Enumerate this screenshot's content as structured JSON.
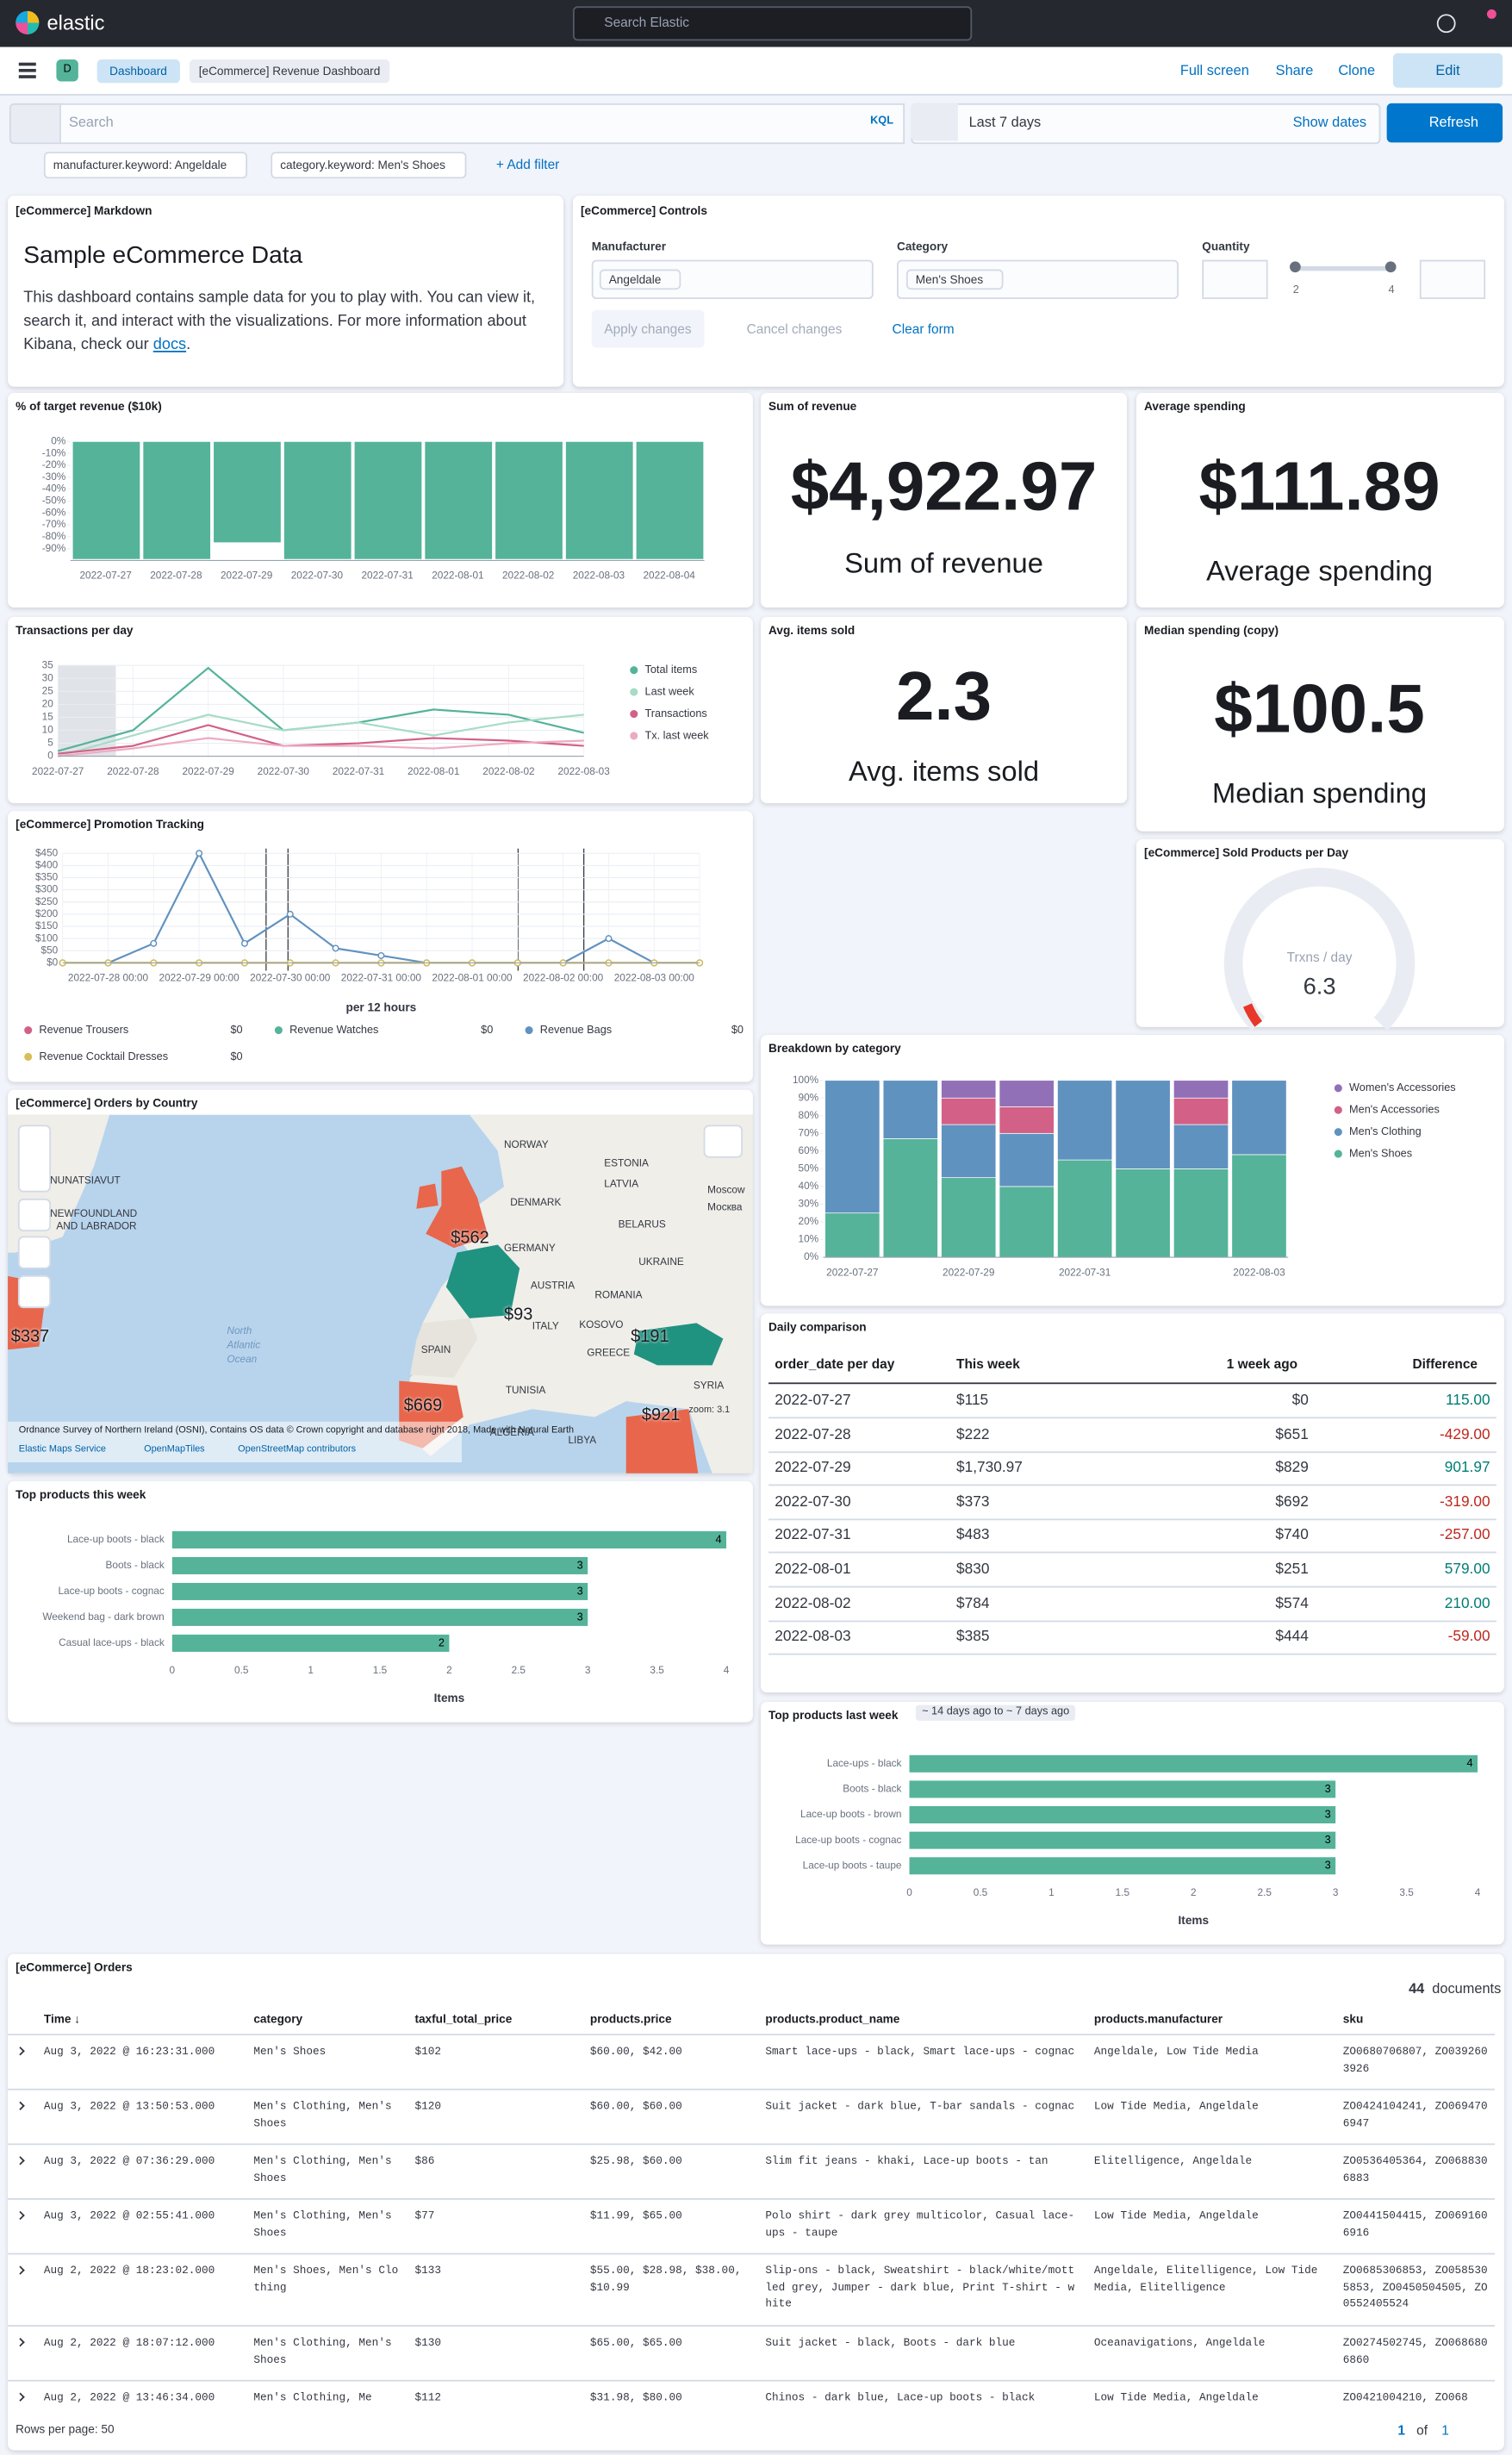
{
  "header": {
    "brand": "elastic",
    "search_placeholder": "Search Elastic"
  },
  "nav": {
    "badge": "D",
    "breadcrumbs": [
      "Dashboard",
      "[eCommerce] Revenue Dashboard"
    ],
    "actions": [
      "Full screen",
      "Share",
      "Clone"
    ],
    "edit": "Edit"
  },
  "query": {
    "placeholder": "Search",
    "language": "KQL",
    "date": "Last 7 days",
    "show_dates": "Show dates",
    "refresh": "Refresh"
  },
  "filters": {
    "pills": [
      "manufacturer.keyword: Angeldale",
      "category.keyword: Men's Shoes"
    ],
    "add": "+ Add filter"
  },
  "markdown": {
    "title": "[eCommerce] Markdown",
    "heading": "Sample eCommerce Data",
    "body": "This dashboard contains sample data for you to play with. You can view it, search it, and interact with the visualizations. For more information about Kibana, check our ",
    "link": "docs",
    "end": "."
  },
  "controls": {
    "title": "[eCommerce] Controls",
    "manufacturer": {
      "label": "Manufacturer",
      "selected": "Angeldale"
    },
    "category": {
      "label": "Category",
      "selected": "Men's Shoes"
    },
    "quantity": {
      "label": "Quantity",
      "range": [
        2,
        4
      ]
    },
    "buttons": [
      "Apply changes",
      "Cancel changes",
      "Clear form"
    ]
  },
  "metrics": [
    {
      "title": "Sum of revenue",
      "value": "$4,922.97",
      "label": "Sum of revenue"
    },
    {
      "title": "Average spending",
      "value": "$111.89",
      "label": "Average spending"
    },
    {
      "title": "Avg. items sold",
      "value": "2.3",
      "label": "Avg. items sold"
    },
    {
      "title": "Median spending (copy)",
      "value": "$100.5",
      "label": "Median spending"
    }
  ],
  "gauge": {
    "title": "[eCommerce] Sold Products per Day",
    "label": "Trxns / day",
    "value": 6.3
  },
  "chart_data": [
    {
      "type": "bar",
      "title": "% of target revenue ($10k)",
      "categories": [
        "2022-07-27",
        "2022-07-28",
        "2022-07-29",
        "2022-07-30",
        "2022-07-31",
        "2022-08-01",
        "2022-08-02",
        "2022-08-03",
        "2022-08-04"
      ],
      "values": [
        -99,
        -99,
        -85,
        -99,
        -99,
        -99,
        -99,
        -99,
        -99
      ],
      "color": "#54b399",
      "ylim": [
        -100,
        0
      ],
      "yticks": [
        {
          "value": 0,
          "label": "0%"
        },
        {
          "value": -10,
          "label": "-10%"
        },
        {
          "value": -20,
          "label": "-20%"
        },
        {
          "value": -30,
          "label": "-30%"
        },
        {
          "value": -40,
          "label": "-40%"
        },
        {
          "value": -50,
          "label": "-50%"
        },
        {
          "value": -60,
          "label": "-60%"
        },
        {
          "value": -70,
          "label": "-70%"
        },
        {
          "value": -80,
          "label": "-80%"
        },
        {
          "value": -90,
          "label": "-90%"
        }
      ]
    },
    {
      "type": "line",
      "title": "Transactions per day",
      "grid": true,
      "categories": [
        "2022-07-27",
        "2022-07-28",
        "2022-07-29",
        "2022-07-30",
        "2022-07-31",
        "2022-08-01",
        "2022-08-02",
        "2022-08-03"
      ],
      "series": [
        {
          "name": "Total items",
          "color": "#54b399",
          "values": [
            2,
            10,
            34,
            10,
            13,
            18,
            16,
            9
          ]
        },
        {
          "name": "Last week",
          "color": "#a6dcc6",
          "values": [
            0,
            8,
            16,
            10,
            13,
            8,
            13,
            16
          ]
        },
        {
          "name": "Transactions",
          "color": "#d36086",
          "values": [
            1,
            4,
            12,
            4,
            5,
            7,
            6,
            4
          ]
        },
        {
          "name": "Tx. last week",
          "color": "#eeaac2",
          "values": [
            0,
            3,
            7,
            4,
            4,
            3,
            5,
            6
          ]
        }
      ],
      "ylim": [
        0,
        35
      ],
      "yticks": [
        0,
        5,
        10,
        15,
        20,
        25,
        30,
        35
      ]
    },
    {
      "type": "line",
      "title": "[eCommerce] Promotion Tracking",
      "grid": true,
      "x_label": "per 12 hours",
      "categories": [
        null,
        "2022-07-28 00:00",
        null,
        "2022-07-29 00:00",
        null,
        "2022-07-30 00:00",
        null,
        "2022-07-31 00:00",
        null,
        "2022-08-01 00:00",
        null,
        "2022-08-02 00:00",
        null,
        "2022-08-03 00:00",
        null
      ],
      "series": [
        {
          "name": "Revenue Trousers",
          "color": "#d36086",
          "legend_value": "$0",
          "values": [
            0,
            0,
            0,
            0,
            0,
            0,
            0,
            0,
            0,
            0,
            0,
            0,
            0,
            0,
            0
          ]
        },
        {
          "name": "Revenue Watches",
          "color": "#54b399",
          "legend_value": "$0",
          "values": [
            0,
            0,
            0,
            0,
            0,
            0,
            0,
            0,
            0,
            0,
            0,
            0,
            0,
            0,
            0
          ]
        },
        {
          "name": "Revenue Bags",
          "color": "#6092c0",
          "legend_value": "$0",
          "values": [
            0,
            0,
            80,
            450,
            80,
            200,
            60,
            30,
            0,
            0,
            0,
            0,
            100,
            0,
            0
          ]
        },
        {
          "name": "Revenue Cocktail Dresses",
          "color": "#d6bf57",
          "legend_value": "$0",
          "values": [
            0,
            0,
            0,
            0,
            0,
            0,
            0,
            0,
            0,
            0,
            0,
            0,
            0,
            0,
            0
          ]
        }
      ],
      "ylim": [
        0,
        450
      ],
      "yticks": [
        {
          "value": 0,
          "label": "$0"
        },
        {
          "value": 50,
          "label": "$50"
        },
        {
          "value": 100,
          "label": "$100"
        },
        {
          "value": 150,
          "label": "$150"
        },
        {
          "value": 200,
          "label": "$200"
        },
        {
          "value": 250,
          "label": "$250"
        },
        {
          "value": 300,
          "label": "$300"
        },
        {
          "value": 350,
          "label": "$350"
        },
        {
          "value": 400,
          "label": "$400"
        },
        {
          "value": 450,
          "label": "$450"
        }
      ]
    },
    {
      "type": "bar",
      "stacked": true,
      "title": "Breakdown by category",
      "categories": [
        "2022-07-27",
        null,
        "2022-07-29",
        null,
        "2022-07-31",
        null,
        null,
        "2022-08-03"
      ],
      "series": [
        {
          "name": "Men's Shoes",
          "color": "#54b399",
          "values": [
            25,
            67,
            45,
            40,
            55,
            50,
            50,
            58
          ]
        },
        {
          "name": "Men's Clothing",
          "color": "#6092c0",
          "values": [
            75,
            33,
            30,
            30,
            45,
            50,
            25,
            42
          ]
        },
        {
          "name": "Men's Accessories",
          "color": "#d36086",
          "values": [
            0,
            0,
            15,
            15,
            0,
            0,
            15,
            0
          ]
        },
        {
          "name": "Women's Accessories",
          "color": "#9170b8",
          "values": [
            0,
            0,
            10,
            15,
            0,
            0,
            10,
            0
          ]
        }
      ],
      "ylim": [
        0,
        100
      ],
      "yticks": [
        {
          "value": 0,
          "label": "0%"
        },
        {
          "value": 10,
          "label": "10%"
        },
        {
          "value": 20,
          "label": "20%"
        },
        {
          "value": 30,
          "label": "30%"
        },
        {
          "value": 40,
          "label": "40%"
        },
        {
          "value": 50,
          "label": "50%"
        },
        {
          "value": 60,
          "label": "60%"
        },
        {
          "value": 70,
          "label": "70%"
        },
        {
          "value": 80,
          "label": "80%"
        },
        {
          "value": 90,
          "label": "90%"
        },
        {
          "value": 100,
          "label": "100%"
        }
      ]
    },
    {
      "type": "hbar",
      "title": "Top products this week",
      "x_label": "Items",
      "categories": [
        "Lace-up boots - black",
        "Boots - black",
        "Lace-up boots - cognac",
        "Weekend bag - dark brown",
        "Casual lace-ups - black"
      ],
      "values": [
        4,
        3,
        3,
        3,
        2
      ],
      "color": "#54b399",
      "xlim": [
        0,
        4
      ],
      "xticks": [
        0,
        0.5,
        1,
        1.5,
        2,
        2.5,
        3,
        3.5,
        4
      ]
    },
    {
      "type": "hbar",
      "title": "Top products last week",
      "badge": "~ 14 days ago to ~ 7 days ago",
      "x_label": "Items",
      "categories": [
        "Lace-ups - black",
        "Boots - black",
        "Lace-up boots - brown",
        "Lace-up boots - cognac",
        "Lace-up boots - taupe"
      ],
      "values": [
        4,
        3,
        3,
        3,
        3
      ],
      "color": "#54b399",
      "xlim": [
        0,
        4
      ],
      "xticks": [
        0,
        0.5,
        1,
        1.5,
        2,
        2.5,
        3,
        3.5,
        4
      ]
    }
  ],
  "map": {
    "title": "[eCommerce] Orders by Country",
    "places": [
      "NORWAY",
      "ESTONIA",
      "LATVIA",
      "DENMARK",
      "Moscow",
      "Москва",
      "BELARUS",
      "GERMANY",
      "UKRAINE",
      "AUSTRIA",
      "ROMANIA",
      "KOSOVO",
      "ITALY",
      "SPAIN",
      "GREECE",
      "SYRIA",
      "TUNISIA",
      "ALGERIA",
      "LIBYA",
      "NUNATSIAVUT",
      "NEWFOUNDLAND",
      "AND LABRADOR",
      "North",
      "Atlantic",
      "Ocean"
    ],
    "amounts": [
      "$562",
      "$93",
      "$191",
      "$669",
      "$921",
      "$337"
    ],
    "attribution": "Ordnance Survey of Northern Ireland (OSNI), Contains OS data © Crown copyright and database right 2018, Made with Natural Earth",
    "sources": [
      "Elastic Maps Service",
      "OpenMapTiles",
      "OpenStreetMap contributors"
    ],
    "zoom": "zoom: 3.1"
  },
  "daily": {
    "title": "Daily comparison",
    "columns": [
      "order_date per day",
      "This week",
      "1 week ago",
      "Difference"
    ],
    "rows": [
      [
        "2022-07-27",
        "$115",
        "$0",
        "115.00"
      ],
      [
        "2022-07-28",
        "$222",
        "$651",
        "-429.00"
      ],
      [
        "2022-07-29",
        "$1,730.97",
        "$829",
        "901.97"
      ],
      [
        "2022-07-30",
        "$373",
        "$692",
        "-319.00"
      ],
      [
        "2022-07-31",
        "$483",
        "$740",
        "-257.00"
      ],
      [
        "2022-08-01",
        "$830",
        "$251",
        "579.00"
      ],
      [
        "2022-08-02",
        "$784",
        "$574",
        "210.00"
      ],
      [
        "2022-08-03",
        "$385",
        "$444",
        "-59.00"
      ]
    ]
  },
  "orders": {
    "title": "[eCommerce] Orders",
    "count": "44",
    "count_label": "documents",
    "columns": [
      "Time ↓",
      "category",
      "taxful_total_price",
      "products.price",
      "products.product_name",
      "products.manufacturer",
      "sku"
    ],
    "rows": [
      [
        "Aug 3, 2022 @ 16:23:31.000",
        "Men's Shoes",
        "$102",
        "$60.00, $42.00",
        "Smart lace-ups - black, Smart lace-ups - cognac",
        "Angeldale, Low Tide Media",
        "ZO0680706807, ZO0392603926"
      ],
      [
        "Aug 3, 2022 @ 13:50:53.000",
        "Men's Clothing, Men's Shoes",
        "$120",
        "$60.00, $60.00",
        "Suit jacket - dark blue, T-bar sandals - cognac",
        "Low Tide Media, Angeldale",
        "ZO0424104241, ZO0694706947"
      ],
      [
        "Aug 3, 2022 @ 07:36:29.000",
        "Men's Clothing, Men's Shoes",
        "$86",
        "$25.98, $60.00",
        "Slim fit jeans - khaki, Lace-up boots - tan",
        "Elitelligence, Angeldale",
        "ZO0536405364, ZO0688306883"
      ],
      [
        "Aug 3, 2022 @ 02:55:41.000",
        "Men's Clothing, Men's Shoes",
        "$77",
        "$11.99, $65.00",
        "Polo shirt - dark grey multicolor, Casual lace-ups - taupe",
        "Low Tide Media, Angeldale",
        "ZO0441504415, ZO0691606916"
      ],
      [
        "Aug 2, 2022 @ 18:23:02.000",
        "Men's Shoes, Men's Clothing",
        "$133",
        "$55.00, $28.98, $38.00, $10.99",
        "Slip-ons - black, Sweatshirt - black/white/mottled grey, Jumper - dark blue, Print T-shirt - white",
        "Angeldale, Elitelligence, Low Tide Media, Elitelligence",
        "ZO0685306853, ZO0585305853, ZO0450504505, ZO0552405524"
      ],
      [
        "Aug 2, 2022 @ 18:07:12.000",
        "Men's Clothing, Men's Shoes",
        "$130",
        "$65.00, $65.00",
        "Suit jacket - black, Boots - dark blue",
        "Oceanavigations, Angeldale",
        "ZO0274502745, ZO0686806860"
      ],
      [
        "Aug 2, 2022 @ 13:46:34.000",
        "Men's Clothing, Me",
        "$112",
        "$31.98, $80.00",
        "Chinos - dark blue, Lace-up boots - black",
        "Low Tide Media, Angeldale",
        "ZO0421004210, ZO068"
      ]
    ],
    "rows_per_page": "Rows per page: 50",
    "page": "1",
    "of": "of",
    "pages": "1"
  }
}
